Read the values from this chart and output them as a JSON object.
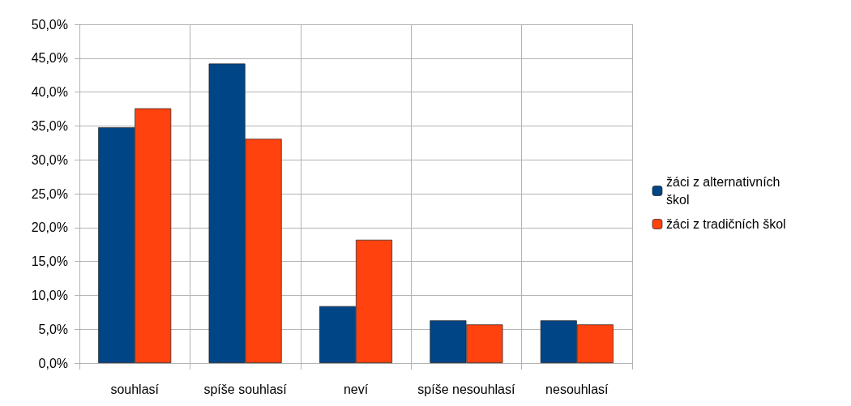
{
  "chart_data": {
    "type": "bar",
    "categories": [
      "souhlasí",
      "spíše souhlasí",
      "neví",
      "spíše nesouhlasí",
      "nesouhlasí"
    ],
    "series": [
      {
        "name": "žáci z alternativních škol",
        "color": "#004586",
        "values": [
          34.8,
          44.2,
          8.4,
          6.3,
          6.3
        ]
      },
      {
        "name": "žáci z tradičních škol",
        "color": "#ff420e",
        "values": [
          37.6,
          33.1,
          18.2,
          5.7,
          5.7
        ]
      }
    ],
    "ylim": [
      0,
      50
    ],
    "yticks": [
      {
        "value": 0,
        "label": "0,0%"
      },
      {
        "value": 5,
        "label": "5,0%"
      },
      {
        "value": 10,
        "label": "10,0%"
      },
      {
        "value": 15,
        "label": "15,0%"
      },
      {
        "value": 20,
        "label": "20,0%"
      },
      {
        "value": 25,
        "label": "25,0%"
      },
      {
        "value": 30,
        "label": "30,0%"
      },
      {
        "value": 35,
        "label": "35,0%"
      },
      {
        "value": 40,
        "label": "40,0%"
      },
      {
        "value": 45,
        "label": "45,0%"
      },
      {
        "value": 50,
        "label": "50,0%"
      }
    ],
    "grid": true,
    "legend": "right"
  }
}
